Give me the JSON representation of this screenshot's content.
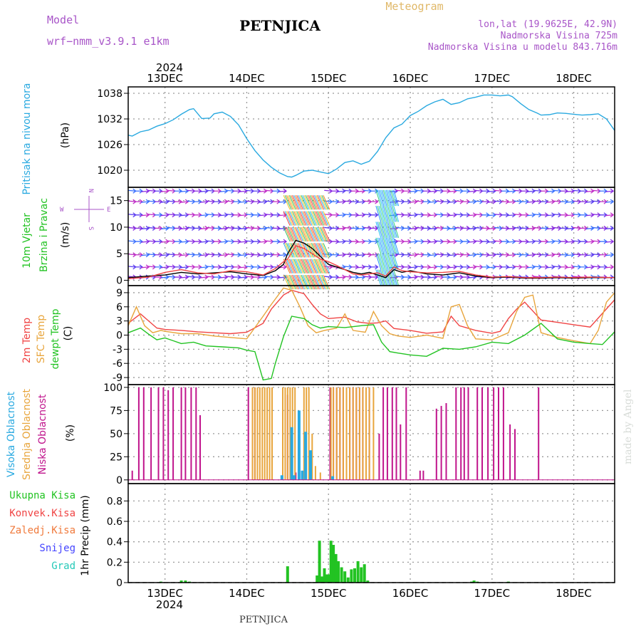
{
  "header": {
    "model_label": "Model",
    "model_name": "wrf−nmm_v3.9.1 e1km",
    "title": "PETNJICA",
    "meteogram": "Meteogram",
    "lonlat": "lon,lat (19.9625E, 42.9N)",
    "altitude": "Nadmorska Visina 725m",
    "model_altitude": "Nadmorska Visina u modelu 843.716m"
  },
  "footer": {
    "station": "PETNJICA",
    "credit": "made by Angel"
  },
  "colors": {
    "pressure": "#29a9e0",
    "purple": "#a855c8",
    "green": "#22c322",
    "red": "#f04444",
    "orange": "#e8a53c",
    "magenta": "#c0148c",
    "blue": "#4444ff",
    "cyan": "#24c9b8",
    "frame": "#000000"
  },
  "wind_direction_legend": {
    "n": "N",
    "w": "W",
    "e": "E",
    "s": "S"
  },
  "chart_data": [
    {
      "type": "line",
      "id": "pressure",
      "ylabel_lines": [
        "Pritisak na nivou mora",
        "(hPa)"
      ],
      "yticks": [
        1020,
        1026,
        1032,
        1038
      ],
      "ylim": [
        1016,
        1039.5
      ],
      "xlim": [
        12.55,
        18.5
      ],
      "date_labels": [
        "13DEC",
        "14DEC",
        "15DEC",
        "16DEC",
        "17DEC",
        "18DEC"
      ],
      "year": "2024",
      "grid": true,
      "series": [
        {
          "color": "pressure",
          "x": [
            12.55,
            12.6,
            12.7,
            12.8,
            12.9,
            13.0,
            13.1,
            13.2,
            13.3,
            13.35,
            13.45,
            13.55,
            13.6,
            13.7,
            13.8,
            13.9,
            14.0,
            14.1,
            14.2,
            14.3,
            14.4,
            14.5,
            14.55,
            14.6,
            14.7,
            14.8,
            14.9,
            15.0,
            15.1,
            15.2,
            15.3,
            15.4,
            15.5,
            15.6,
            15.7,
            15.8,
            15.9,
            16.0,
            16.1,
            16.2,
            16.3,
            16.4,
            16.5,
            16.6,
            16.7,
            16.8,
            16.9,
            17.0,
            17.1,
            17.2,
            17.25,
            17.35,
            17.45,
            17.55,
            17.6,
            17.7,
            17.8,
            17.9,
            18.0,
            18.1,
            18.2,
            18.3,
            18.4,
            18.5
          ],
          "values": [
            1028.2,
            1028.0,
            1029.0,
            1029.4,
            1030.3,
            1030.9,
            1031.8,
            1033.1,
            1034.2,
            1034.4,
            1032.1,
            1032.2,
            1033.2,
            1033.6,
            1032.6,
            1030.6,
            1027.4,
            1024.6,
            1022.4,
            1020.7,
            1019.4,
            1018.5,
            1018.4,
            1018.8,
            1019.8,
            1020.0,
            1019.6,
            1019.2,
            1020.3,
            1021.8,
            1022.2,
            1021.4,
            1022.1,
            1024.4,
            1027.6,
            1029.9,
            1030.8,
            1032.8,
            1033.8,
            1035.1,
            1036.0,
            1036.6,
            1035.4,
            1035.8,
            1036.7,
            1037.1,
            1037.6,
            1037.6,
            1037.4,
            1037.6,
            1037.2,
            1035.6,
            1034.2,
            1033.4,
            1032.9,
            1033.0,
            1033.4,
            1033.3,
            1033.1,
            1032.9,
            1033.0,
            1033.2,
            1032.0,
            1029.3
          ]
        }
      ]
    },
    {
      "type": "line",
      "id": "wind",
      "ylabel_lines": [
        "10m Vjetar",
        "Brzina i Pravac",
        "(m/s)"
      ],
      "yticks": [
        0,
        5,
        10,
        15
      ],
      "ylim": [
        -1,
        17.5
      ],
      "xlim": [
        12.55,
        18.5
      ],
      "grid": true,
      "series": [
        {
          "name": "",
          "color": "frame",
          "x": [
            12.55,
            12.8,
            13.0,
            13.2,
            13.4,
            13.6,
            13.8,
            14.0,
            14.2,
            14.35,
            14.45,
            14.5,
            14.6,
            14.7,
            14.8,
            14.9,
            15.0,
            15.1,
            15.2,
            15.3,
            15.4,
            15.5,
            15.6,
            15.7,
            15.8,
            15.9,
            16.0,
            16.2,
            16.4,
            16.6,
            16.8,
            17.0,
            17.2,
            17.4,
            17.6,
            17.8,
            18.0,
            18.2,
            18.5
          ],
          "values": [
            0.5,
            0.8,
            1.0,
            1.5,
            1.2,
            1.4,
            1.6,
            1.2,
            0.9,
            1.8,
            3.0,
            5.0,
            7.5,
            7.0,
            6.0,
            4.5,
            3.0,
            2.5,
            2.0,
            1.5,
            1.2,
            1.5,
            1.0,
            0.5,
            2.0,
            1.5,
            1.8,
            1.2,
            1.0,
            1.4,
            0.8,
            0.5,
            0.6,
            0.4,
            0.4,
            0.5,
            0.4,
            0.5,
            0.5
          ]
        },
        {
          "name": "",
          "color": "red",
          "x": [
            12.55,
            12.8,
            13.0,
            13.2,
            13.4,
            13.6,
            13.8,
            14.0,
            14.2,
            14.35,
            14.45,
            14.5,
            14.6,
            14.7,
            14.8,
            14.9,
            15.0,
            15.1,
            15.2,
            15.3,
            15.4,
            15.5,
            15.6,
            15.7,
            15.8,
            15.9,
            16.0,
            16.2,
            16.4,
            16.6,
            16.8,
            17.0,
            17.2,
            17.4,
            17.6,
            17.8,
            18.0,
            18.2,
            18.5
          ],
          "values": [
            0.3,
            0.6,
            1.5,
            2.0,
            1.4,
            1.2,
            1.8,
            1.6,
            1.0,
            2.2,
            3.5,
            4.0,
            6.5,
            6.0,
            5.0,
            4.0,
            3.5,
            2.8,
            2.0,
            1.2,
            1.0,
            1.2,
            1.4,
            0.8,
            2.5,
            1.8,
            1.6,
            1.4,
            1.5,
            1.7,
            1.0,
            0.6,
            0.7,
            0.5,
            0.5,
            0.6,
            0.5,
            0.6,
            0.5
          ]
        }
      ]
    },
    {
      "type": "line",
      "id": "temperature",
      "ylabel_lines": [
        "2m Temp",
        "SFC Temp",
        "dewpt Temp",
        "(C)"
      ],
      "yticks": [
        -9,
        -6,
        -3,
        0,
        3,
        6,
        9
      ],
      "ylim": [
        -10.5,
        10.5
      ],
      "xlim": [
        12.55,
        18.5
      ],
      "grid": true,
      "series": [
        {
          "name": "2m Temp",
          "color": "red",
          "x": [
            12.55,
            12.7,
            12.8,
            12.9,
            13.0,
            13.2,
            13.4,
            13.6,
            13.8,
            14.0,
            14.2,
            14.3,
            14.45,
            14.55,
            14.7,
            14.8,
            14.9,
            15.0,
            15.2,
            15.35,
            15.5,
            15.6,
            15.7,
            15.8,
            15.9,
            16.0,
            16.2,
            16.4,
            16.5,
            16.6,
            16.8,
            17.0,
            17.1,
            17.2,
            17.3,
            17.4,
            17.6,
            17.8,
            18.0,
            18.2,
            18.5
          ],
          "values": [
            2.5,
            4.5,
            3.0,
            1.5,
            1.2,
            1.0,
            0.7,
            0.5,
            0.3,
            0.6,
            2.5,
            5.5,
            8.5,
            9.5,
            8.8,
            6.5,
            4.5,
            3.5,
            3.8,
            2.8,
            2.5,
            2.6,
            3.0,
            1.4,
            1.2,
            1.0,
            0.4,
            0.7,
            4.0,
            2.0,
            1.0,
            0.4,
            0.8,
            3.5,
            5.5,
            7.0,
            3.2,
            2.7,
            2.2,
            1.7,
            7.5
          ]
        },
        {
          "name": "SFC Temp",
          "color": "orange",
          "x": [
            12.55,
            12.65,
            12.75,
            12.85,
            12.95,
            13.0,
            13.2,
            13.4,
            13.6,
            13.8,
            14.0,
            14.2,
            14.3,
            14.45,
            14.55,
            14.65,
            14.75,
            14.85,
            14.95,
            15.1,
            15.2,
            15.3,
            15.45,
            15.55,
            15.65,
            15.75,
            15.85,
            16.0,
            16.2,
            16.4,
            16.5,
            16.6,
            16.7,
            16.8,
            17.0,
            17.2,
            17.3,
            17.4,
            17.5,
            17.6,
            17.8,
            18.0,
            18.2,
            18.3,
            18.4,
            18.5
          ],
          "values": [
            2.0,
            6.0,
            2.0,
            0.5,
            1.0,
            0.8,
            0.3,
            0.3,
            -0.2,
            -0.5,
            -0.8,
            4.0,
            6.5,
            10.0,
            9.5,
            6.0,
            2.0,
            0.5,
            1.0,
            1.5,
            4.5,
            1.0,
            0.6,
            5.0,
            2.0,
            0.3,
            -0.2,
            -0.5,
            0.0,
            -0.7,
            6.0,
            6.5,
            2.0,
            -0.8,
            -1.0,
            0.5,
            5.0,
            8.0,
            8.5,
            0.5,
            -0.5,
            -1.2,
            -1.8,
            1.0,
            7.0,
            9.0
          ]
        },
        {
          "name": "dewpt Temp",
          "color": "green",
          "x": [
            12.55,
            12.7,
            12.8,
            12.9,
            13.0,
            13.1,
            13.2,
            13.35,
            13.5,
            13.7,
            13.9,
            14.0,
            14.1,
            14.2,
            14.3,
            14.35,
            14.45,
            14.55,
            14.7,
            14.8,
            14.9,
            15.0,
            15.2,
            15.4,
            15.55,
            15.65,
            15.75,
            15.85,
            16.0,
            16.2,
            16.4,
            16.6,
            16.8,
            17.0,
            17.2,
            17.4,
            17.6,
            17.8,
            18.0,
            18.2,
            18.35,
            18.5
          ],
          "values": [
            0.5,
            1.5,
            0.2,
            -1.0,
            -0.6,
            -1.2,
            -1.8,
            -1.5,
            -2.3,
            -2.5,
            -2.7,
            -3.2,
            -3.5,
            -9.5,
            -9.2,
            -6.0,
            -0.3,
            4.0,
            3.5,
            2.2,
            1.5,
            1.8,
            1.6,
            2.0,
            2.2,
            -1.5,
            -3.5,
            -3.8,
            -4.2,
            -4.5,
            -2.8,
            -3.0,
            -2.5,
            -1.5,
            -1.8,
            0.0,
            2.5,
            -0.8,
            -1.5,
            -1.8,
            -2.0,
            0.7
          ]
        }
      ]
    },
    {
      "type": "bar",
      "id": "cloud_cover",
      "ylabel_lines": [
        "Visoka Oblacnost",
        "Srednja Oblacnost",
        "Niska Oblacnost",
        "(%)"
      ],
      "yticks": [
        0,
        25,
        50,
        75,
        100
      ],
      "ylim": [
        -4,
        103
      ],
      "xlim": [
        12.55,
        18.5
      ],
      "grid": true,
      "series": [
        {
          "name": "Niska Oblacnost",
          "color": "magenta",
          "x": [
            12.6,
            12.68,
            12.74,
            12.83,
            12.92,
            12.98,
            13.04,
            13.1,
            13.2,
            13.25,
            13.32,
            13.38,
            13.43,
            14.02,
            14.1,
            14.5,
            14.55,
            14.6,
            15.02,
            15.06,
            15.1,
            15.14,
            15.18,
            15.22,
            15.26,
            15.3,
            15.34,
            15.38,
            15.42,
            15.46,
            15.5,
            15.62,
            15.67,
            15.72,
            15.78,
            15.83,
            15.88,
            15.95,
            16.12,
            16.16,
            16.32,
            16.38,
            16.44,
            16.56,
            16.62,
            16.66,
            16.71,
            16.82,
            16.88,
            16.95,
            17.02,
            17.08,
            17.14,
            17.22,
            17.28,
            17.57
          ],
          "values": [
            10,
            100,
            100,
            100,
            100,
            100,
            97,
            100,
            100,
            100,
            100,
            100,
            70,
            100,
            100,
            92,
            10,
            8,
            100,
            100,
            100,
            100,
            100,
            100,
            100,
            100,
            100,
            100,
            100,
            100,
            100,
            50,
            100,
            100,
            100,
            100,
            60,
            100,
            10,
            10,
            77,
            80,
            83,
            100,
            100,
            100,
            100,
            100,
            100,
            100,
            100,
            100,
            100,
            60,
            55,
            100
          ]
        },
        {
          "name": "Srednja Oblacnost",
          "color": "orange",
          "x": [
            14.07,
            14.1,
            14.13,
            14.16,
            14.19,
            14.22,
            14.25,
            14.28,
            14.31,
            14.44,
            14.47,
            14.5,
            14.53,
            14.56,
            14.59,
            14.7,
            14.73,
            14.76,
            14.8,
            14.84,
            14.9,
            15.03,
            15.06,
            15.1,
            15.14,
            15.18,
            15.22,
            15.26,
            15.3,
            15.34,
            15.38,
            15.42,
            15.46,
            15.5,
            15.55
          ],
          "values": [
            100,
            100,
            100,
            100,
            100,
            100,
            100,
            100,
            100,
            100,
            100,
            100,
            100,
            100,
            100,
            100,
            100,
            100,
            50,
            15,
            8,
            100,
            100,
            100,
            100,
            100,
            100,
            100,
            100,
            100,
            100,
            100,
            100,
            100,
            100
          ]
        },
        {
          "name": "Visoka Oblacnost",
          "color": "pressure",
          "x": [
            14.43,
            14.55,
            14.58,
            14.64,
            14.68,
            14.72,
            14.78,
            15.05
          ],
          "values": [
            5,
            57,
            5,
            75,
            10,
            52,
            32,
            4
          ]
        }
      ]
    },
    {
      "type": "bar",
      "id": "precipitation",
      "ylabel_lines": [
        "1hr Precip (mm)"
      ],
      "legend": [
        "Ukupna Kisa",
        "Konvek.Kisa",
        "Zaledj.Kisa",
        "Snijeg",
        "Grad"
      ],
      "yticks": [
        0,
        0.2,
        0.4,
        0.6,
        0.8
      ],
      "ylim": [
        0,
        0.97
      ],
      "xlim": [
        12.55,
        18.5
      ],
      "grid": true,
      "series": [
        {
          "name": "Ukupna Kisa",
          "color": "green",
          "x": [
            12.95,
            13.2,
            13.25,
            13.3,
            14.5,
            14.86,
            14.89,
            14.92,
            14.95,
            14.98,
            15.0,
            15.03,
            15.06,
            15.09,
            15.12,
            15.16,
            15.2,
            15.24,
            15.28,
            15.32,
            15.36,
            15.4,
            15.44,
            15.48,
            16.75,
            16.78,
            16.82,
            17.2
          ],
          "values": [
            0.01,
            0.02,
            0.02,
            0.01,
            0.16,
            0.07,
            0.41,
            0.06,
            0.14,
            0.08,
            0.08,
            0.41,
            0.37,
            0.28,
            0.21,
            0.15,
            0.11,
            0.05,
            0.13,
            0.14,
            0.21,
            0.15,
            0.18,
            0.02,
            0.01,
            0.02,
            0.01,
            0.01
          ]
        }
      ]
    }
  ]
}
